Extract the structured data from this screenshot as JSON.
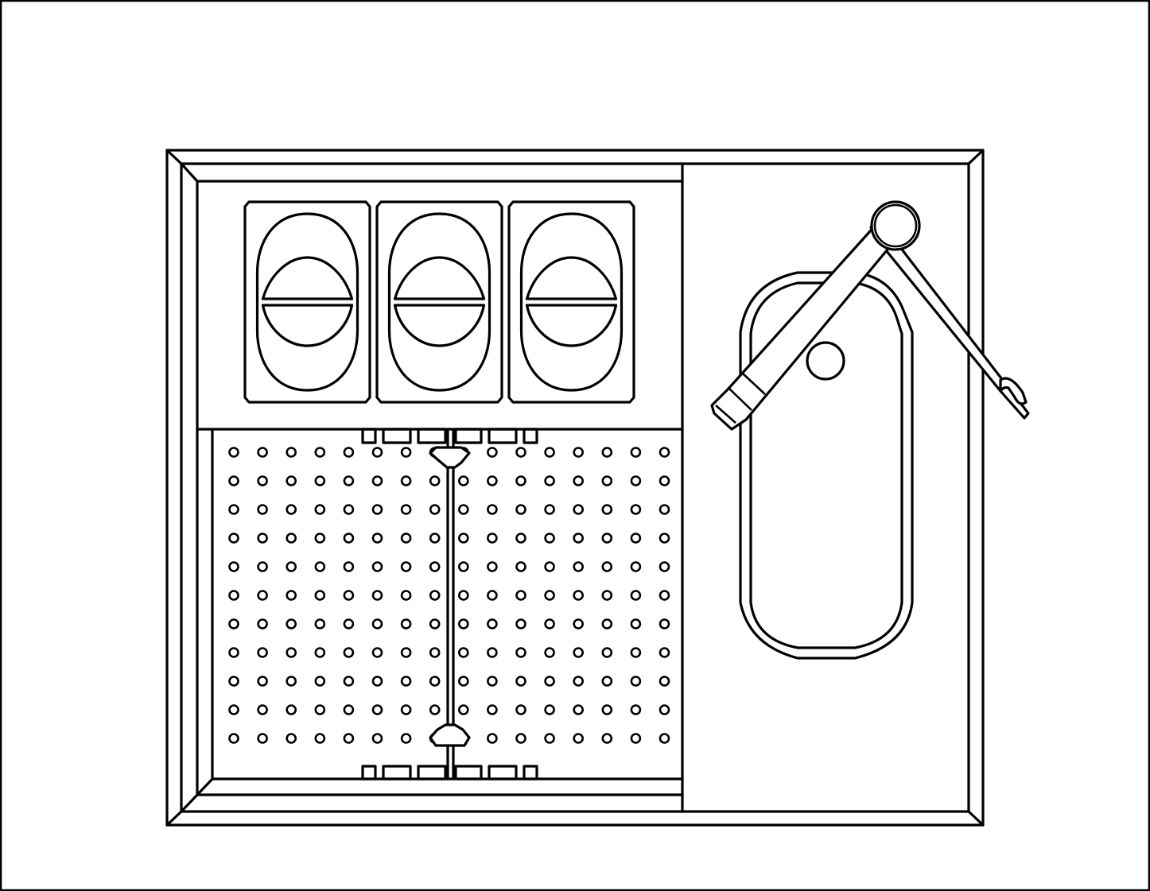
{
  "drawing": {
    "subject": "kitchen-sink-with-hob-plan-view",
    "line_color": "#000000",
    "background_color": "#ffffff",
    "burner_count": 3,
    "drainer_hole_rows": 11,
    "drainer_hole_cols": 16
  }
}
